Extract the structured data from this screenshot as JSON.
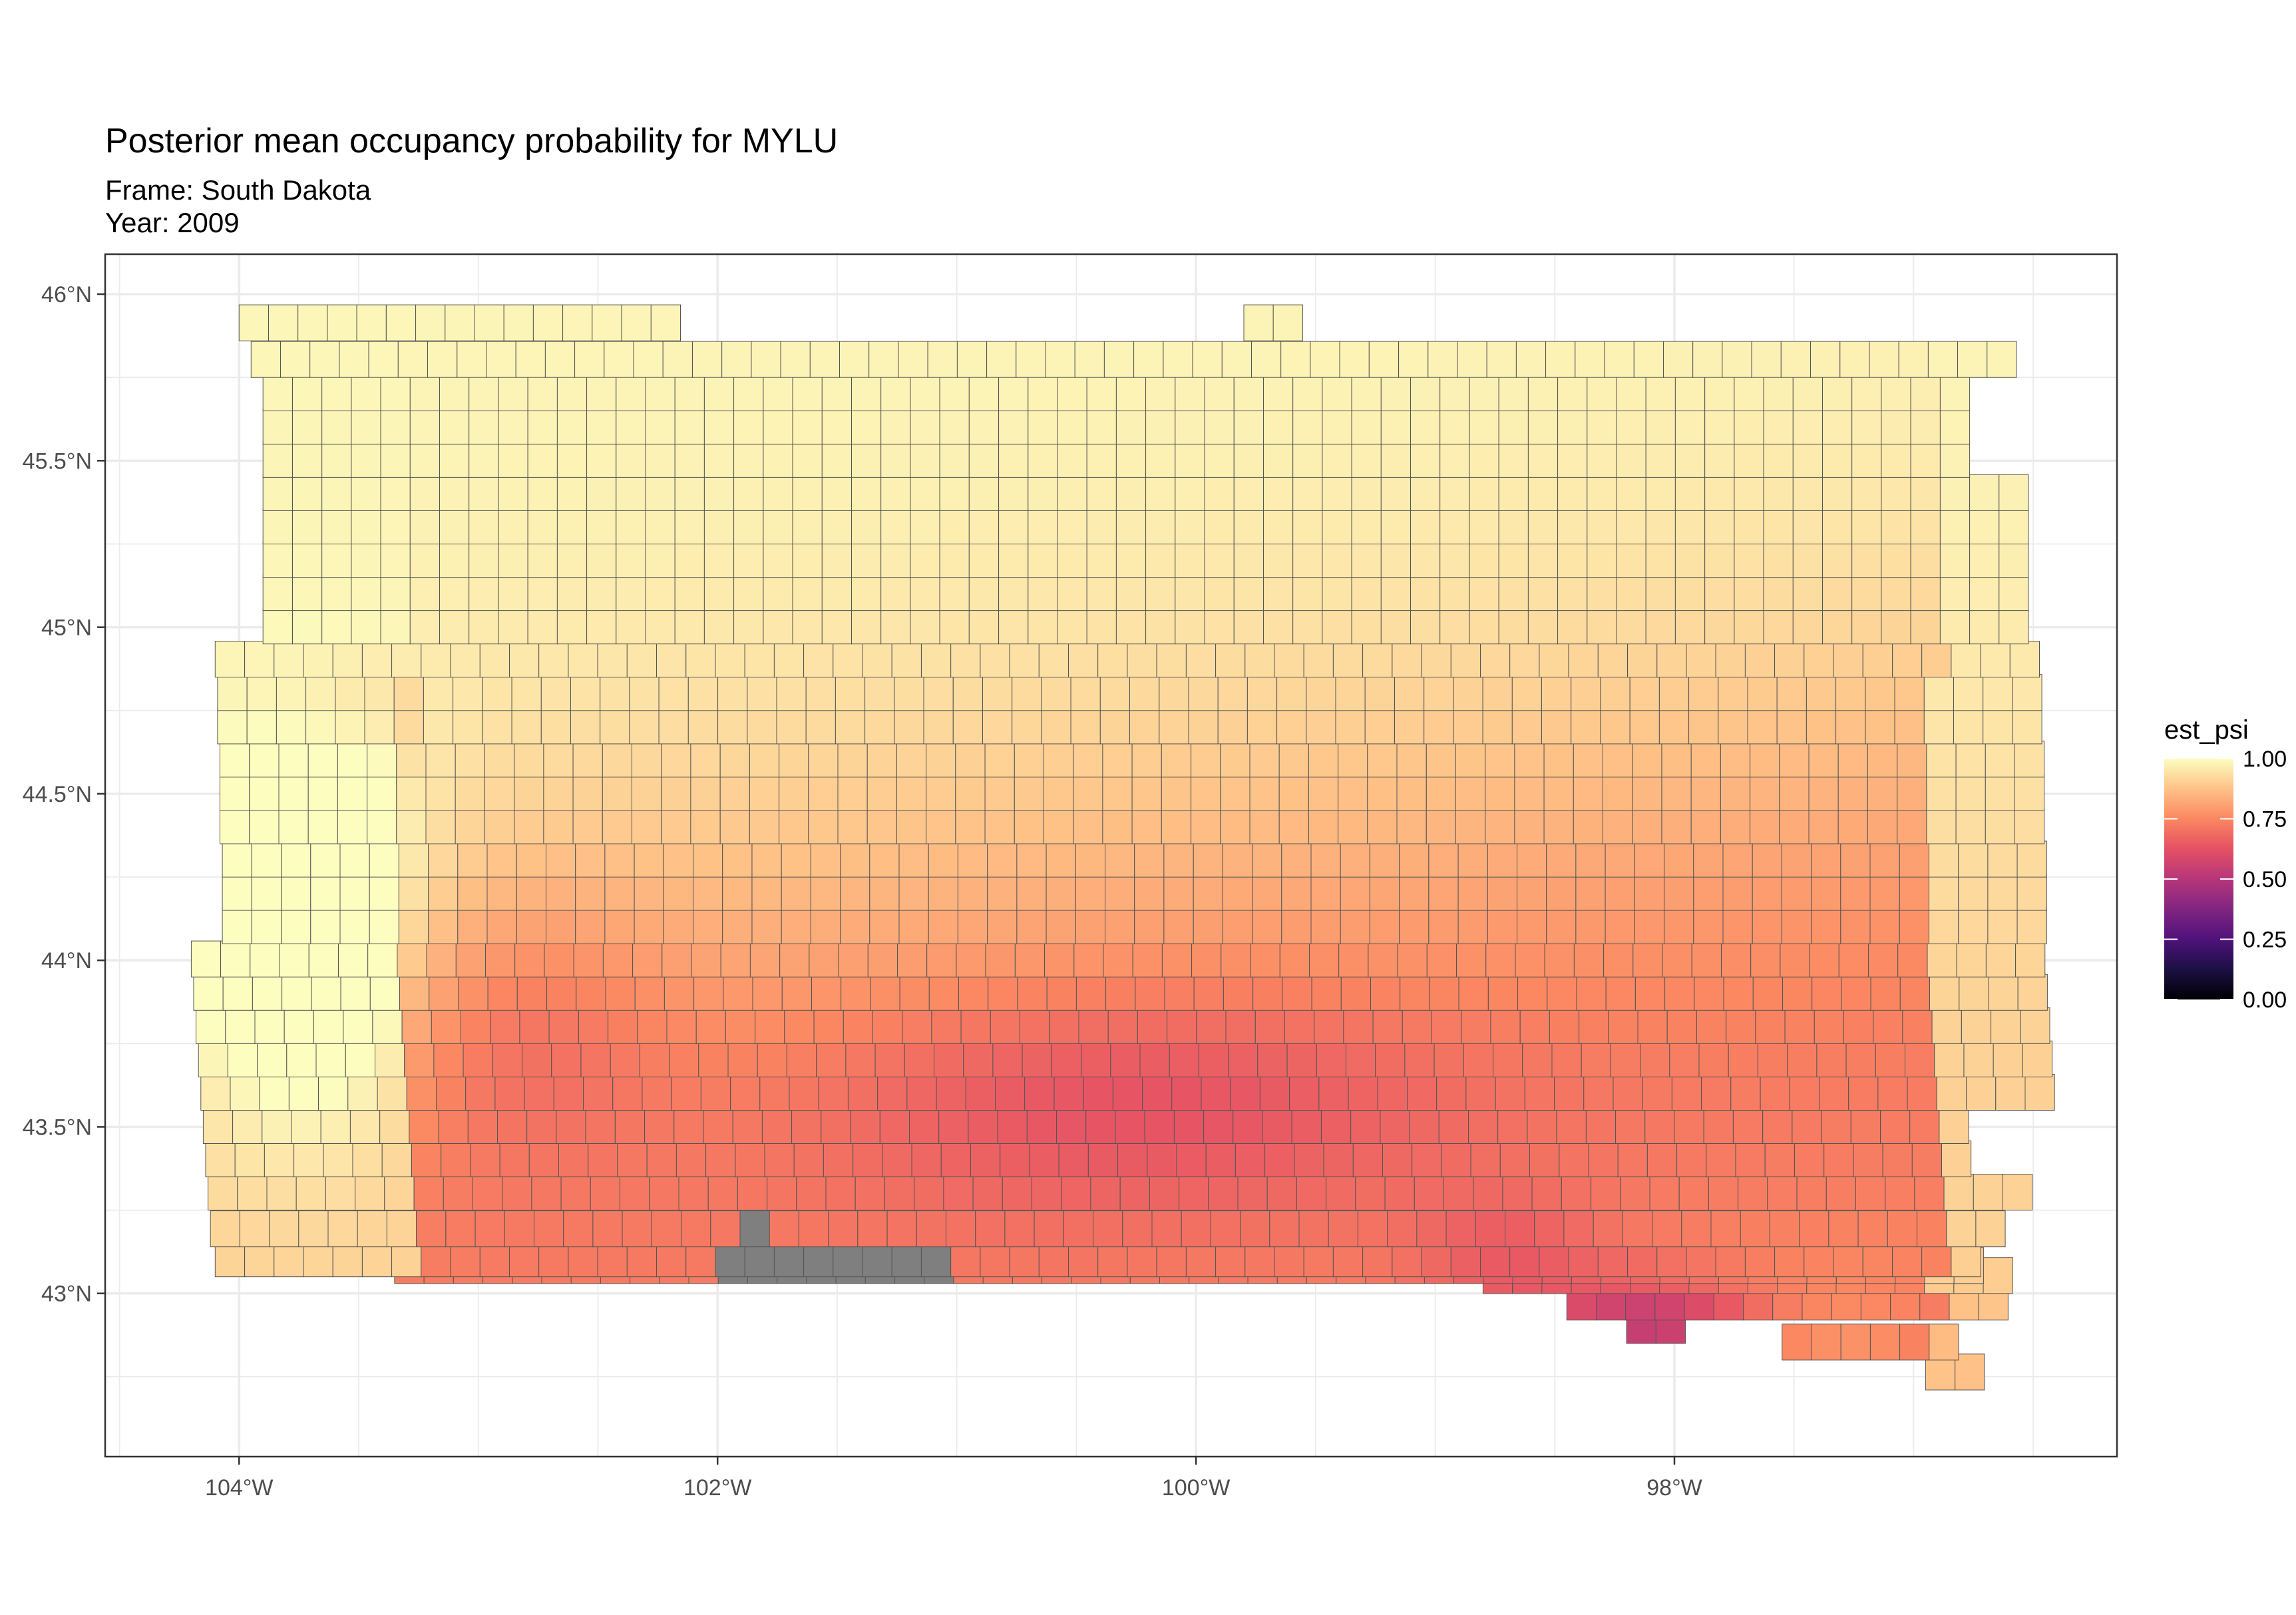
{
  "map": {
    "title": "Posterior mean occupancy probability for MYLU",
    "frame_line": "Frame: South Dakota",
    "year_line": "Year: 2009"
  },
  "chart_data": {
    "type": "heatmap",
    "fill_variable": "est_psi",
    "x_ticks": [
      "104°W",
      "102°W",
      "100°W",
      "98°W"
    ],
    "x_tick_values": [
      -104,
      -102,
      -100,
      -98
    ],
    "y_ticks": [
      "43°N",
      "43.5°N",
      "44°N",
      "44.5°N",
      "45°N",
      "45.5°N",
      "46°N"
    ],
    "y_tick_values": [
      43,
      43.5,
      44,
      44.5,
      45,
      45.5,
      46
    ],
    "xlim": [
      -104.56,
      -96.15
    ],
    "ylim": [
      42.51,
      46.12
    ],
    "legend": {
      "title": "est_psi",
      "labels": [
        "1.00",
        "0.75",
        "0.50",
        "0.25",
        "0.00"
      ],
      "values": [
        1,
        0.75,
        0.5,
        0.25,
        0
      ],
      "placement": "right",
      "palette": "magma"
    },
    "missing_color": "#7f7f7f",
    "grid": true
  }
}
